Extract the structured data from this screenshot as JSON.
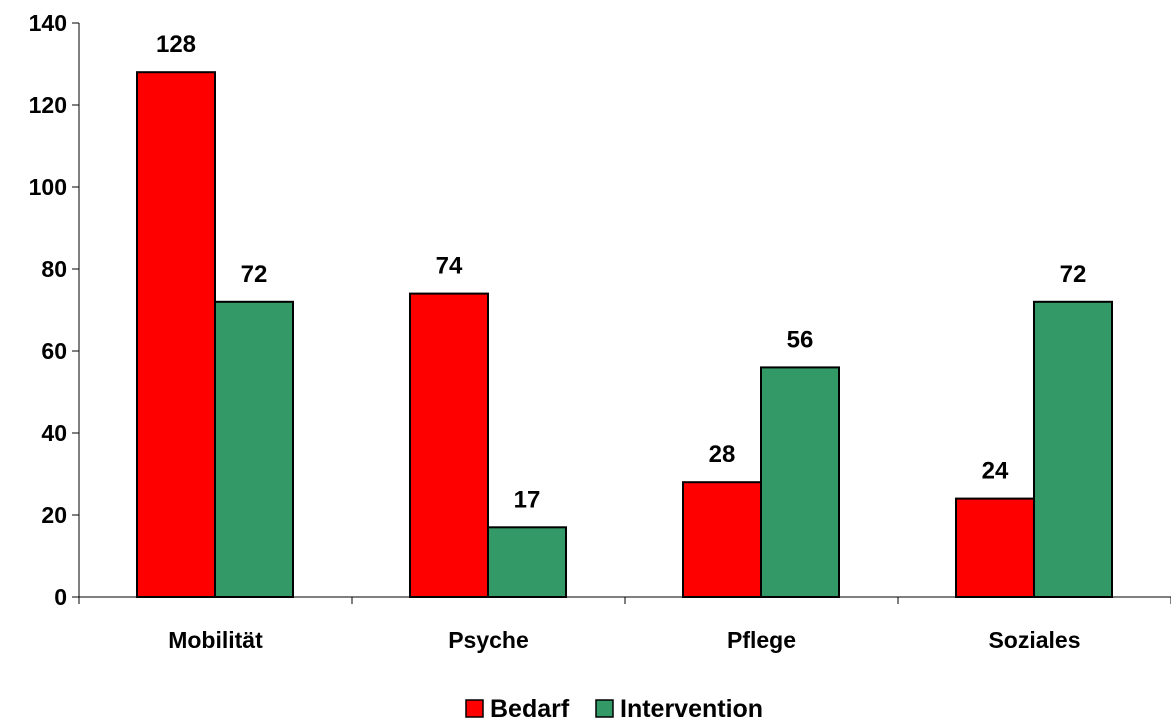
{
  "chart_data": {
    "type": "bar",
    "categories": [
      "Mobilität",
      "Psyche",
      "Pflege",
      "Soziales"
    ],
    "series": [
      {
        "name": "Bedarf",
        "values": [
          128,
          74,
          28,
          24
        ],
        "color": "#ff0000"
      },
      {
        "name": "Intervention",
        "values": [
          72,
          17,
          56,
          72
        ],
        "color": "#339966"
      }
    ],
    "ylim": [
      0,
      140
    ],
    "yticks": [
      0,
      20,
      40,
      60,
      80,
      100,
      120,
      140
    ],
    "grid": false,
    "legend_position": "bottom",
    "data_labels": true
  }
}
